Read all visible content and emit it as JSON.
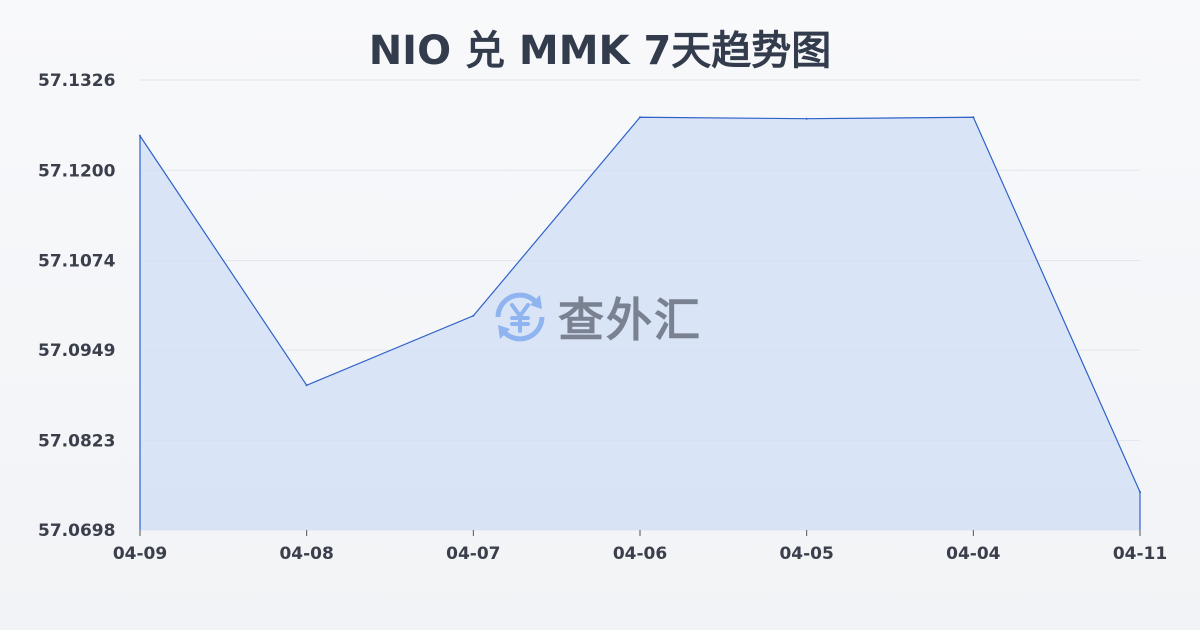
{
  "chart_data": {
    "type": "area",
    "title": "NIO 兑 MMK 7天趋势图",
    "xlabel": "",
    "ylabel": "",
    "categories": [
      "04-09",
      "04-08",
      "04-07",
      "04-06",
      "04-05",
      "04-04",
      "04-11"
    ],
    "values": [
      57.1248,
      57.09,
      57.0997,
      57.1274,
      57.1272,
      57.1274,
      57.0751
    ],
    "yticks": [
      "57.1326",
      "57.1200",
      "57.1074",
      "57.0949",
      "57.0823",
      "57.0698"
    ],
    "ylim": [
      57.0698,
      57.1326
    ],
    "grid": true,
    "colors": {
      "line": "#2f62c9",
      "fill": "#d3e0f6",
      "grid": "#e2e5ea"
    }
  },
  "watermark": {
    "text": "查外汇",
    "icon": "yen-exchange-icon",
    "icon_color": "#8fb4f0"
  }
}
